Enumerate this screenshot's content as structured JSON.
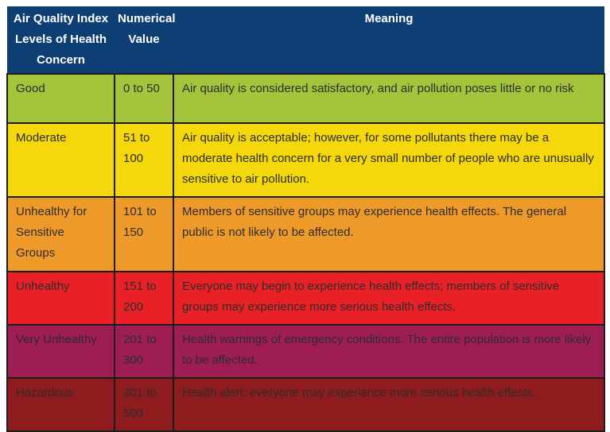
{
  "colors": {
    "header_bg": "#0d3e74",
    "header_text": "#ffffff",
    "body_text": "#2d2d2d",
    "border": "#1c1c1c"
  },
  "table": {
    "headers": {
      "col1_lines": [
        "Air Quality Index",
        "Levels of Health",
        "Concern"
      ],
      "col2_lines": [
        "Numerical",
        "Value"
      ],
      "col3": "Meaning"
    },
    "rows": [
      {
        "level": "Good",
        "range": "0 to 50",
        "meaning": "Air quality is considered satisfactory, and air pollution poses little or no risk",
        "color": "#a5c43b"
      },
      {
        "level": "Moderate",
        "range": "51 to 100",
        "meaning": "Air quality is acceptable; however, for some pollutants there may be a moderate health concern for a very small number of people who are unusually sensitive to air pollution.",
        "color": "#f4d80c"
      },
      {
        "level": "Unhealthy for Sensitive Groups",
        "range": "101 to 150",
        "meaning": "Members of sensitive groups may experience health effects. The general public is not likely to be affected.",
        "color": "#ee9a2b"
      },
      {
        "level": "Unhealthy",
        "range": "151 to 200",
        "meaning": "Everyone may begin to experience health effects; members of sensitive groups may experience more serious health effects.",
        "color": "#e92127"
      },
      {
        "level": "Very Unhealthy",
        "range": "201 to 300",
        "meaning": "Health warnings of emergency conditions. The entire population is more likely to be affected.",
        "color": "#9e1d52"
      },
      {
        "level": "Hazardous",
        "range": "301 to 500",
        "meaning": "Health alert: everyone may experience more serious health effects.",
        "color": "#8e1b1e"
      }
    ]
  }
}
